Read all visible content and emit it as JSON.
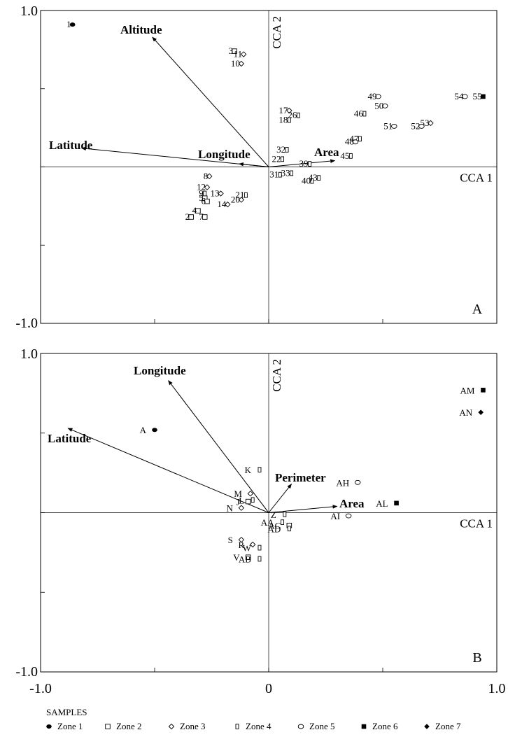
{
  "chart_data": [
    {
      "type": "scatter",
      "panel_label": "A",
      "xlim": [
        -1.0,
        1.0
      ],
      "ylim": [
        -1.0,
        1.0
      ],
      "y_tick_labels": [
        "1.0",
        "-1.0"
      ],
      "x_axis_label": "CCA 1",
      "y_axis_label": "CCA 2",
      "vectors": [
        {
          "name": "Altitude",
          "x": -0.51,
          "y": 0.83
        },
        {
          "name": "Latitude",
          "x": -0.82,
          "y": 0.12
        },
        {
          "name": "Longitude",
          "x": -0.13,
          "y": 0.02
        },
        {
          "name": "Area",
          "x": 0.29,
          "y": 0.04
        }
      ],
      "points": [
        {
          "label": "1",
          "zone": 1,
          "x": -0.86,
          "y": 0.91
        },
        {
          "label": "3",
          "zone": 2,
          "x": -0.15,
          "y": 0.74
        },
        {
          "label": "11",
          "zone": 3,
          "x": -0.11,
          "y": 0.72
        },
        {
          "label": "10",
          "zone": 3,
          "x": -0.12,
          "y": 0.66
        },
        {
          "label": "17",
          "zone": 3,
          "x": 0.09,
          "y": 0.36
        },
        {
          "label": "18",
          "zone": 4,
          "x": 0.09,
          "y": 0.3
        },
        {
          "label": "26",
          "zone": 4,
          "x": 0.13,
          "y": 0.33
        },
        {
          "label": "32",
          "zone": 4,
          "x": 0.08,
          "y": 0.11
        },
        {
          "label": "22",
          "zone": 4,
          "x": 0.06,
          "y": 0.05
        },
        {
          "label": "39",
          "zone": 4,
          "x": 0.18,
          "y": 0.02
        },
        {
          "label": "49",
          "zone": 5,
          "x": 0.48,
          "y": 0.45
        },
        {
          "label": "50",
          "zone": 5,
          "x": 0.51,
          "y": 0.39
        },
        {
          "label": "46",
          "zone": 4,
          "x": 0.42,
          "y": 0.34
        },
        {
          "label": "51",
          "zone": 5,
          "x": 0.55,
          "y": 0.26
        },
        {
          "label": "53",
          "zone": 3,
          "x": 0.71,
          "y": 0.28
        },
        {
          "label": "52",
          "zone": 5,
          "x": 0.67,
          "y": 0.26
        },
        {
          "label": "55",
          "zone": 6,
          "x": 0.94,
          "y": 0.45
        },
        {
          "label": "54",
          "zone": 5,
          "x": 0.86,
          "y": 0.45
        },
        {
          "label": "47",
          "zone": 4,
          "x": 0.4,
          "y": 0.18
        },
        {
          "label": "48",
          "zone": 5,
          "x": 0.38,
          "y": 0.16
        },
        {
          "label": "45",
          "zone": 4,
          "x": 0.36,
          "y": 0.07
        },
        {
          "label": "31",
          "zone": 4,
          "x": 0.05,
          "y": -0.05
        },
        {
          "label": "33",
          "zone": 4,
          "x": 0.1,
          "y": -0.04
        },
        {
          "label": "40",
          "zone": 4,
          "x": 0.19,
          "y": -0.09
        },
        {
          "label": "43",
          "zone": 4,
          "x": 0.22,
          "y": -0.07
        },
        {
          "label": "8",
          "zone": 3,
          "x": -0.26,
          "y": -0.06
        },
        {
          "label": "12",
          "zone": 3,
          "x": -0.27,
          "y": -0.13
        },
        {
          "label": "13",
          "zone": 3,
          "x": -0.21,
          "y": -0.17
        },
        {
          "label": "9",
          "zone": 4,
          "x": -0.28,
          "y": -0.17
        },
        {
          "label": "5",
          "zone": 2,
          "x": -0.28,
          "y": -0.2
        },
        {
          "label": "6",
          "zone": 2,
          "x": -0.27,
          "y": -0.22
        },
        {
          "label": "4",
          "zone": 2,
          "x": -0.31,
          "y": -0.28
        },
        {
          "label": "2",
          "zone": 2,
          "x": -0.34,
          "y": -0.32
        },
        {
          "label": "7",
          "zone": 2,
          "x": -0.28,
          "y": -0.32
        },
        {
          "label": "21",
          "zone": 4,
          "x": -0.1,
          "y": -0.18
        },
        {
          "label": "20",
          "zone": 3,
          "x": -0.12,
          "y": -0.21
        },
        {
          "label": "14",
          "zone": 3,
          "x": -0.18,
          "y": -0.24
        }
      ]
    },
    {
      "type": "scatter",
      "panel_label": "B",
      "xlim": [
        -1.0,
        1.0
      ],
      "ylim": [
        -1.0,
        1.0
      ],
      "y_tick_labels": [
        "1.0",
        "-1.0"
      ],
      "x_tick_labels": [
        "-1.0",
        "0",
        "1.0"
      ],
      "x_axis_label": "CCA 1",
      "y_axis_label": "CCA 2",
      "vectors": [
        {
          "name": "Longitude",
          "x": -0.44,
          "y": 0.83
        },
        {
          "name": "Latitude",
          "x": -0.88,
          "y": 0.53
        },
        {
          "name": "Perimeter",
          "x": 0.1,
          "y": 0.18
        },
        {
          "name": "Area",
          "x": 0.3,
          "y": 0.04
        }
      ],
      "points": [
        {
          "label": "A",
          "zone": 1,
          "x": -0.5,
          "y": 0.52
        },
        {
          "label": "AM",
          "zone": 6,
          "x": 0.94,
          "y": 0.77
        },
        {
          "label": "AN",
          "zone": 7,
          "x": 0.93,
          "y": 0.63
        },
        {
          "label": "K",
          "zone": 4,
          "x": -0.04,
          "y": 0.27
        },
        {
          "label": "AH",
          "zone": 5,
          "x": 0.39,
          "y": 0.19
        },
        {
          "label": "M",
          "zone": 3,
          "x": -0.08,
          "y": 0.12
        },
        {
          "label": "J",
          "zone": 2,
          "x": -0.09,
          "y": 0.07
        },
        {
          "label": "L",
          "zone": 4,
          "x": -0.07,
          "y": 0.08
        },
        {
          "label": "N",
          "zone": 3,
          "x": -0.12,
          "y": 0.03
        },
        {
          "label": "AL",
          "zone": 6,
          "x": 0.56,
          "y": 0.06
        },
        {
          "label": "Z",
          "zone": 4,
          "x": 0.07,
          "y": -0.01
        },
        {
          "label": "AI",
          "zone": 5,
          "x": 0.35,
          "y": -0.02
        },
        {
          "label": "AA",
          "zone": 4,
          "x": 0.06,
          "y": -0.06
        },
        {
          "label": "AC",
          "zone": 2,
          "x": 0.09,
          "y": -0.08
        },
        {
          "label": "AD",
          "zone": 4,
          "x": 0.09,
          "y": -0.1
        },
        {
          "label": "S",
          "zone": 3,
          "x": -0.12,
          "y": -0.17
        },
        {
          "label": "R",
          "zone": 3,
          "x": -0.07,
          "y": -0.2
        },
        {
          "label": "W",
          "zone": 4,
          "x": -0.04,
          "y": -0.22
        },
        {
          "label": "V",
          "zone": 2,
          "x": -0.09,
          "y": -0.28
        },
        {
          "label": "AB",
          "zone": 4,
          "x": -0.04,
          "y": -0.29
        }
      ]
    }
  ],
  "legend": {
    "title": "SAMPLES",
    "items": [
      {
        "zone": 1,
        "label": "Zone 1",
        "marker": "filled-circle"
      },
      {
        "zone": 2,
        "label": "Zone 2",
        "marker": "open-square"
      },
      {
        "zone": 3,
        "label": "Zone 3",
        "marker": "open-diamond"
      },
      {
        "zone": 4,
        "label": "Zone 4",
        "marker": "open-tall-rect"
      },
      {
        "zone": 5,
        "label": "Zone 5",
        "marker": "open-circle"
      },
      {
        "zone": 6,
        "label": "Zone 6",
        "marker": "filled-square"
      },
      {
        "zone": 7,
        "label": "Zone 7",
        "marker": "filled-diamond"
      }
    ]
  }
}
